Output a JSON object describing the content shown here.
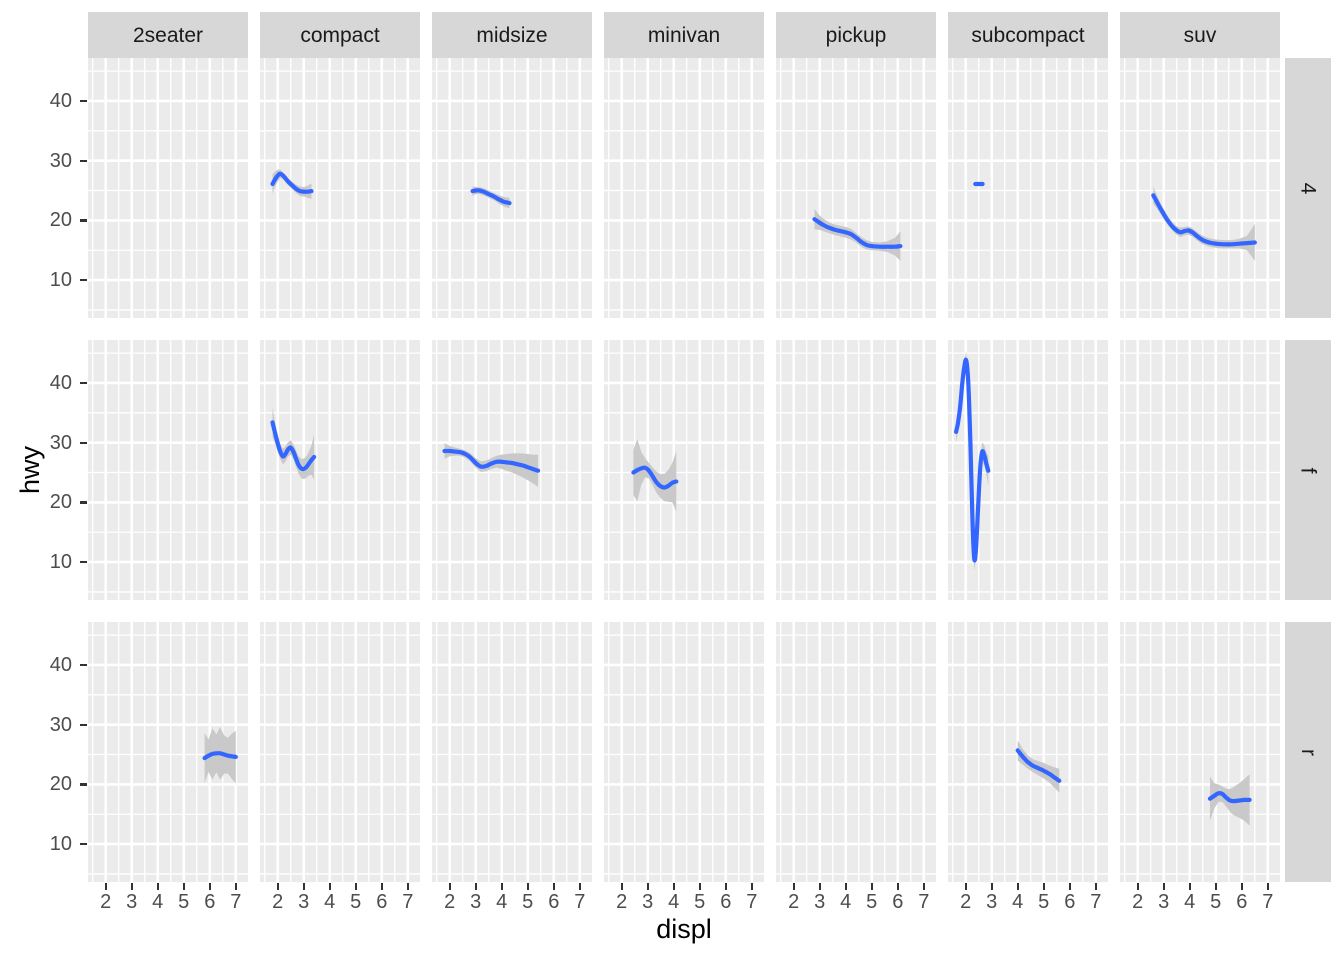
{
  "chart_data": {
    "type": "line",
    "title": "",
    "xlabel": "displ",
    "ylabel": "hwy",
    "x_tick_labels": [
      "2",
      "3",
      "4",
      "5",
      "6",
      "7"
    ],
    "x_tick_values": [
      2,
      3,
      4,
      5,
      6,
      7
    ],
    "x_minor_values": [
      1.5,
      2.5,
      3.5,
      4.5,
      5.5,
      6.5
    ],
    "y_tick_labels": [
      "10",
      "20",
      "30",
      "40"
    ],
    "y_tick_values": [
      10,
      20,
      30,
      40
    ],
    "y_minor_values": [
      5,
      15,
      25,
      35,
      45
    ],
    "xlim": [
      1.32,
      7.47
    ],
    "ylim": [
      3.65,
      47.2
    ],
    "grid": {
      "major": true,
      "minor": true
    },
    "legend": "none",
    "facet_columns": [
      "2seater",
      "compact",
      "midsize",
      "minivan",
      "pickup",
      "subcompact",
      "suv"
    ],
    "facet_rows": [
      "4",
      "f",
      "r"
    ],
    "series": [
      {
        "row": "4",
        "col": "compact",
        "x": [
          1.8,
          1.9,
          2.0,
          2.1,
          2.25,
          2.4,
          2.55,
          2.7,
          2.85,
          3.0,
          3.15,
          3.3
        ],
        "y": [
          26.1,
          26.9,
          27.5,
          27.8,
          27.3,
          26.5,
          25.9,
          25.3,
          24.9,
          24.8,
          24.8,
          24.9
        ],
        "upper": [
          27.7,
          28.2,
          28.5,
          28.5,
          27.9,
          27.1,
          26.5,
          26.0,
          25.7,
          25.6,
          25.8,
          26.2
        ],
        "lower": [
          24.5,
          25.6,
          26.5,
          27.1,
          26.7,
          25.9,
          25.3,
          24.6,
          24.1,
          24.0,
          23.8,
          23.6
        ]
      },
      {
        "row": "4",
        "col": "midsize",
        "x": [
          2.88,
          3.0,
          3.15,
          3.3,
          3.5,
          3.7,
          3.9,
          4.1,
          4.3
        ],
        "y": [
          24.9,
          25.0,
          25.0,
          24.8,
          24.4,
          24.0,
          23.5,
          23.1,
          22.9
        ],
        "upper": [
          25.7,
          25.6,
          25.6,
          25.4,
          25.0,
          24.6,
          24.2,
          23.9,
          23.8
        ],
        "lower": [
          24.1,
          24.4,
          24.4,
          24.2,
          23.8,
          23.4,
          22.8,
          22.3,
          22.0
        ]
      },
      {
        "row": "4",
        "col": "pickup",
        "x": [
          2.8,
          3.0,
          3.2,
          3.4,
          3.6,
          3.8,
          4.0,
          4.2,
          4.4,
          4.6,
          4.8,
          5.0,
          5.3,
          5.6,
          5.9,
          6.1
        ],
        "y": [
          20.2,
          19.6,
          19.1,
          18.7,
          18.4,
          18.2,
          18.0,
          17.7,
          17.1,
          16.4,
          15.9,
          15.7,
          15.6,
          15.6,
          15.6,
          15.7
        ],
        "upper": [
          21.9,
          20.8,
          20.1,
          19.6,
          19.3,
          19.1,
          18.9,
          18.6,
          17.9,
          17.2,
          16.7,
          16.4,
          16.3,
          16.5,
          17.1,
          18.2
        ],
        "lower": [
          18.5,
          18.4,
          18.1,
          17.8,
          17.5,
          17.3,
          17.1,
          16.8,
          16.3,
          15.6,
          15.1,
          15.0,
          14.9,
          14.7,
          14.1,
          13.2
        ]
      },
      {
        "row": "4",
        "col": "subcompact",
        "x": [
          2.37,
          2.65
        ],
        "y": [
          26.1,
          26.1
        ],
        "upper": [
          26.1,
          26.1
        ],
        "lower": [
          26.1,
          26.1
        ]
      },
      {
        "row": "4",
        "col": "suv",
        "x": [
          2.6,
          2.75,
          2.9,
          3.05,
          3.2,
          3.35,
          3.5,
          3.65,
          3.8,
          3.95,
          4.1,
          4.3,
          4.5,
          4.75,
          5.0,
          5.3,
          5.6,
          5.9,
          6.2,
          6.5
        ],
        "y": [
          24.2,
          23.0,
          21.8,
          20.7,
          19.7,
          18.9,
          18.3,
          18.0,
          18.2,
          18.3,
          18.0,
          17.3,
          16.7,
          16.3,
          16.1,
          16.0,
          16.0,
          16.1,
          16.2,
          16.3
        ],
        "upper": [
          25.6,
          24.1,
          22.7,
          21.5,
          20.4,
          19.6,
          19.0,
          18.8,
          18.9,
          19.0,
          18.7,
          18.0,
          17.4,
          17.0,
          16.8,
          16.7,
          16.7,
          16.9,
          17.4,
          19.4
        ],
        "lower": [
          22.8,
          21.9,
          20.9,
          19.9,
          19.0,
          18.2,
          17.6,
          17.2,
          17.5,
          17.6,
          17.3,
          16.6,
          16.0,
          15.6,
          15.4,
          15.3,
          15.3,
          15.3,
          15.0,
          13.2
        ]
      },
      {
        "row": "f",
        "col": "compact",
        "x": [
          1.8,
          1.9,
          2.0,
          2.1,
          2.2,
          2.3,
          2.4,
          2.5,
          2.6,
          2.7,
          2.8,
          2.9,
          3.0,
          3.1,
          3.2,
          3.3,
          3.4
        ],
        "y": [
          33.4,
          31.6,
          29.9,
          28.5,
          27.7,
          28.1,
          28.9,
          29.2,
          28.5,
          27.4,
          26.3,
          25.7,
          25.6,
          25.9,
          26.5,
          27.1,
          27.6
        ],
        "upper": [
          35.9,
          33.3,
          31.3,
          29.8,
          29.0,
          29.4,
          30.1,
          30.4,
          29.8,
          28.8,
          27.8,
          27.3,
          27.3,
          27.7,
          28.5,
          29.6,
          31.4
        ],
        "lower": [
          30.9,
          29.9,
          28.5,
          27.2,
          26.4,
          26.8,
          27.7,
          28.0,
          27.2,
          26.0,
          24.8,
          24.1,
          23.9,
          24.1,
          24.5,
          24.6,
          23.8
        ]
      },
      {
        "row": "f",
        "col": "midsize",
        "x": [
          1.8,
          2.0,
          2.2,
          2.4,
          2.6,
          2.8,
          3.0,
          3.2,
          3.4,
          3.6,
          3.8,
          4.0,
          4.2,
          4.4,
          4.6,
          4.8,
          5.0,
          5.2,
          5.4
        ],
        "y": [
          28.6,
          28.6,
          28.5,
          28.4,
          28.1,
          27.5,
          26.6,
          26.0,
          26.1,
          26.5,
          26.8,
          26.8,
          26.7,
          26.6,
          26.4,
          26.2,
          25.9,
          25.6,
          25.3
        ],
        "upper": [
          29.9,
          29.5,
          29.2,
          29.0,
          28.7,
          28.2,
          27.4,
          26.9,
          27.0,
          27.4,
          27.8,
          28.0,
          28.1,
          28.2,
          28.2,
          28.2,
          28.1,
          28.0,
          28.0
        ],
        "lower": [
          27.3,
          27.7,
          27.8,
          27.8,
          27.5,
          26.8,
          25.8,
          25.1,
          25.2,
          25.6,
          25.8,
          25.6,
          25.3,
          25.0,
          24.6,
          24.2,
          23.7,
          23.2,
          22.6
        ]
      },
      {
        "row": "f",
        "col": "minivan",
        "x": [
          2.45,
          2.6,
          2.75,
          2.9,
          3.05,
          3.2,
          3.35,
          3.5,
          3.65,
          3.8,
          3.95,
          4.1
        ],
        "y": [
          25.0,
          25.4,
          25.7,
          25.8,
          25.3,
          24.3,
          23.3,
          22.7,
          22.5,
          22.8,
          23.3,
          23.5
        ],
        "upper": [
          28.8,
          30.6,
          28.5,
          27.4,
          26.6,
          25.8,
          25.1,
          24.7,
          24.8,
          25.5,
          26.6,
          28.6
        ],
        "lower": [
          21.2,
          20.2,
          22.9,
          24.2,
          24.0,
          22.8,
          21.5,
          20.7,
          20.2,
          20.1,
          20.0,
          18.4
        ]
      },
      {
        "row": "f",
        "col": "subcompact",
        "x": [
          1.63,
          1.7,
          1.78,
          1.86,
          1.94,
          2.02,
          2.1,
          2.18,
          2.26,
          2.33,
          2.4,
          2.48,
          2.56,
          2.64,
          2.72,
          2.8,
          2.87
        ],
        "y": [
          31.8,
          33.2,
          35.8,
          39.5,
          42.5,
          43.8,
          40.0,
          30.0,
          17.0,
          10.5,
          12.5,
          19.5,
          26.0,
          28.5,
          27.8,
          26.4,
          25.3
        ],
        "upper": [
          33.6,
          34.6,
          37.0,
          40.7,
          43.8,
          45.2,
          41.6,
          31.8,
          18.8,
          12.5,
          14.3,
          21.1,
          27.6,
          30.1,
          29.5,
          28.3,
          27.8
        ],
        "lower": [
          30.0,
          31.8,
          34.6,
          38.3,
          41.2,
          42.4,
          38.4,
          28.2,
          15.2,
          8.5,
          10.7,
          17.9,
          24.4,
          26.9,
          26.1,
          24.5,
          22.8
        ]
      },
      {
        "row": "r",
        "col": "2seater",
        "x": [
          5.8,
          5.95,
          6.1,
          6.25,
          6.4,
          6.55,
          6.7,
          6.85,
          7.0
        ],
        "y": [
          24.4,
          24.8,
          25.1,
          25.2,
          25.2,
          25.0,
          24.8,
          24.7,
          24.6
        ],
        "upper": [
          28.6,
          27.5,
          29.4,
          28.4,
          29.6,
          28.2,
          27.8,
          28.5,
          29.0
        ],
        "lower": [
          20.2,
          22.1,
          20.8,
          22.0,
          20.8,
          21.8,
          21.8,
          20.9,
          20.2
        ]
      },
      {
        "row": "r",
        "col": "subcompact",
        "x": [
          4.0,
          4.2,
          4.4,
          4.6,
          4.8,
          5.0,
          5.2,
          5.4,
          5.6
        ],
        "y": [
          25.7,
          24.6,
          23.7,
          23.1,
          22.7,
          22.3,
          21.8,
          21.2,
          20.6
        ],
        "upper": [
          27.4,
          25.9,
          24.8,
          24.2,
          23.9,
          23.6,
          23.2,
          22.9,
          22.6
        ],
        "lower": [
          24.0,
          23.3,
          22.6,
          22.0,
          21.5,
          21.0,
          20.4,
          19.5,
          18.6
        ]
      },
      {
        "row": "r",
        "col": "suv",
        "x": [
          4.78,
          4.95,
          5.1,
          5.25,
          5.4,
          5.55,
          5.7,
          5.9,
          6.1,
          6.3
        ],
        "y": [
          17.6,
          18.1,
          18.5,
          18.4,
          17.8,
          17.3,
          17.2,
          17.3,
          17.4,
          17.4
        ],
        "upper": [
          21.3,
          20.2,
          20.0,
          19.7,
          19.3,
          19.2,
          19.6,
          20.2,
          20.9,
          21.7
        ],
        "lower": [
          13.9,
          16.0,
          17.0,
          17.1,
          16.3,
          15.4,
          14.8,
          14.4,
          13.9,
          13.1
        ]
      }
    ]
  },
  "style": {
    "line_color": "#3366FF",
    "ribbon_color": "#C9C9C9",
    "panel_bg": "#EBEBEB",
    "strip_bg": "#D7D7D7",
    "grid_color": "#FFFFFF",
    "tick_color": "#333333",
    "axis_text_color": "#4D4D4D",
    "strip_text_color": "#1A1A1A",
    "axis_title_color": "#000000",
    "page_bg": "#FFFFFF"
  }
}
